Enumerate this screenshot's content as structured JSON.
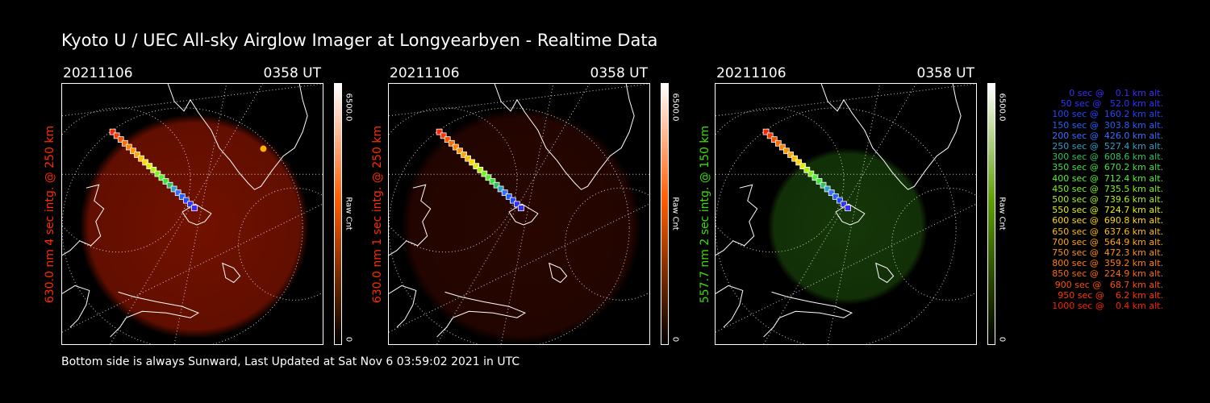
{
  "title": "Kyoto U / UEC All-sky Airglow Imager at Longyearbyen - Realtime Data",
  "footer": "Bottom side is always Sunward, Last Updated at Sat Nov  6 03:59:02 2021 in UTC",
  "panels": [
    {
      "date": "20211106",
      "time": "0358 UT",
      "side_label": "630.0 nm 4 sec intg. @ 250 km",
      "label_color": "#ff2a00",
      "cbar_max": "6500.0",
      "cbar_unit": "Raw Cnt",
      "cbar_min": "0",
      "glow_color": "#b01a00",
      "glow_opacity": 0.65,
      "colorbar_top": "#ffffff",
      "colorbar_mid": "#ff5a00",
      "colorbar_bottom": "#000000"
    },
    {
      "date": "20211106",
      "time": "0358 UT",
      "side_label": "630.0 nm 1 sec intg. @ 250 km",
      "label_color": "#ff2a00",
      "cbar_max": "6500.0",
      "cbar_unit": "Raw Cnt",
      "cbar_min": "0",
      "glow_color": "#5a0d00",
      "glow_opacity": 0.45,
      "colorbar_top": "#ffffff",
      "colorbar_mid": "#ff5a00",
      "colorbar_bottom": "#000000"
    },
    {
      "date": "20211106",
      "time": "0358 UT",
      "side_label": "557.7 nm 2 sec intg. @ 150 km",
      "label_color": "#38e000",
      "cbar_max": "6500.0",
      "cbar_unit": "Raw Cnt",
      "cbar_min": "0",
      "glow_color": "#1c4a0c",
      "glow_opacity": 0.75,
      "colorbar_top": "#ffffff",
      "colorbar_mid": "#5aa000",
      "colorbar_bottom": "#000000"
    }
  ],
  "legend": [
    {
      "text": "   0 sec @    0.1 km alt.",
      "color": "#3a2cff"
    },
    {
      "text": "  50 sec @   52.0 km alt.",
      "color": "#2e34ff"
    },
    {
      "text": " 100 sec @  160.2 km alt.",
      "color": "#2244ff"
    },
    {
      "text": " 150 sec @  303.8 km alt.",
      "color": "#2060ff"
    },
    {
      "text": " 200 sec @  426.0 km alt.",
      "color": "#3a6cff"
    },
    {
      "text": " 250 sec @  527.4 km alt.",
      "color": "#2aa0c8"
    },
    {
      "text": " 300 sec @  608.6 km alt.",
      "color": "#30c060"
    },
    {
      "text": " 350 sec @  670.2 km alt.",
      "color": "#40e040"
    },
    {
      "text": " 400 sec @  712.4 km alt.",
      "color": "#50f030"
    },
    {
      "text": " 450 sec @  735.5 km alt.",
      "color": "#80f020"
    },
    {
      "text": " 500 sec @  739.6 km alt.",
      "color": "#b0f010"
    },
    {
      "text": " 550 sec @  724.7 km alt.",
      "color": "#e0f000"
    },
    {
      "text": " 600 sec @  690.8 km alt.",
      "color": "#ffd800"
    },
    {
      "text": " 650 sec @  637.6 km alt.",
      "color": "#ffbc00"
    },
    {
      "text": " 700 sec @  564.9 km alt.",
      "color": "#ffa800"
    },
    {
      "text": " 750 sec @  472.3 km alt.",
      "color": "#ff9400"
    },
    {
      "text": " 800 sec @  359.2 km alt.",
      "color": "#ff8000"
    },
    {
      "text": " 850 sec @  224.9 km alt.",
      "color": "#ff6a00"
    },
    {
      "text": " 900 sec @   68.7 km alt.",
      "color": "#ff5000"
    },
    {
      "text": " 950 sec @    6.2 km alt.",
      "color": "#ff3800"
    },
    {
      "text": "1000 sec @    0.4 km alt.",
      "color": "#ff2000"
    }
  ]
}
